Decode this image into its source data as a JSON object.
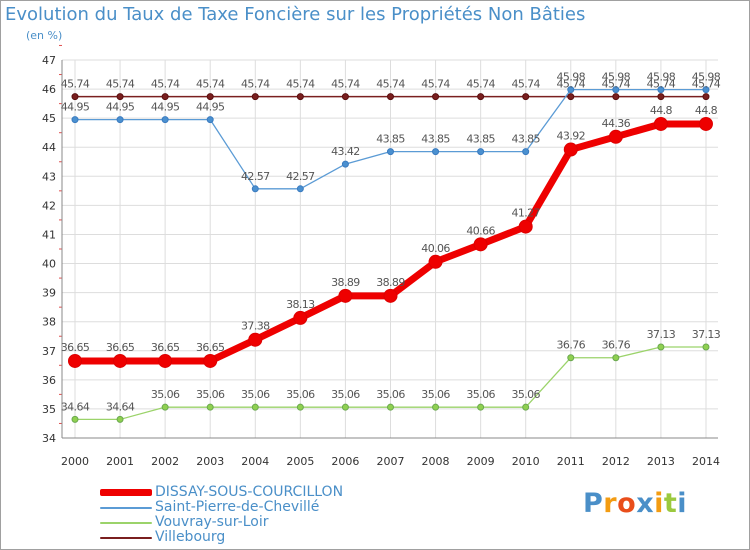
{
  "chart_data": {
    "type": "line",
    "title": "Evolution du Taux de Taxe Foncière sur les Propriétés Non Bâties",
    "subtitle": "(en %)",
    "xlabel": "",
    "ylabel": "",
    "categories": [
      "2000",
      "2001",
      "2002",
      "2003",
      "2004",
      "2005",
      "2006",
      "2007",
      "2008",
      "2009",
      "2010",
      "2011",
      "2012",
      "2013",
      "2014"
    ],
    "ylim": [
      34,
      47
    ],
    "yticks": [
      34,
      35,
      36,
      37,
      38,
      39,
      40,
      41,
      42,
      43,
      44,
      45,
      46,
      47
    ],
    "grid": true,
    "legend_position": "bottom-left",
    "series": [
      {
        "name": "DISSAY-SOUS-COURCILLON",
        "color": "#ee0000",
        "values": [
          36.65,
          36.65,
          36.65,
          36.65,
          37.38,
          38.13,
          38.89,
          38.89,
          40.06,
          40.66,
          41.27,
          43.92,
          44.36,
          44.8,
          44.8
        ],
        "labels": [
          "36.65",
          "36.65",
          "36.65",
          "36.65",
          "37.38",
          "38.13",
          "38.89",
          "38.89",
          "40.06",
          "40.66",
          "41.27",
          "43.92",
          "44.36",
          "44.8",
          "44.8"
        ]
      },
      {
        "name": "Saint-Pierre-de-Chevillé",
        "color": "#5b9bd5",
        "values": [
          44.95,
          44.95,
          44.95,
          44.95,
          42.57,
          42.57,
          43.42,
          43.85,
          43.85,
          43.85,
          43.85,
          45.98,
          45.98,
          45.98,
          45.98
        ],
        "labels": [
          "44.95",
          "44.95",
          "44.95",
          "44.95",
          "42.57",
          "42.57",
          "43.42",
          "43.85",
          "43.85",
          "43.85",
          "43.85",
          "45.98",
          "45.98",
          "45.98",
          "45.98"
        ]
      },
      {
        "name": "Vouvray-sur-Loir",
        "color": "#9bd36a",
        "values": [
          34.64,
          34.64,
          35.06,
          35.06,
          35.06,
          35.06,
          35.06,
          35.06,
          35.06,
          35.06,
          35.06,
          36.76,
          36.76,
          37.13,
          37.13
        ],
        "labels": [
          "34.64",
          "34.64",
          "35.06",
          "35.06",
          "35.06",
          "35.06",
          "35.06",
          "35.06",
          "35.06",
          "35.06",
          "35.06",
          "36.76",
          "36.76",
          "37.13",
          "37.13"
        ]
      },
      {
        "name": "Villebourg",
        "color": "#7a1f1f",
        "values": [
          45.74,
          45.74,
          45.74,
          45.74,
          45.74,
          45.74,
          45.74,
          45.74,
          45.74,
          45.74,
          45.74,
          45.74,
          45.74,
          45.74,
          45.74
        ],
        "labels": [
          "45.74",
          "45.74",
          "45.74",
          "45.74",
          "45.74",
          "45.74",
          "45.74",
          "45.74",
          "45.74",
          "45.74",
          "45.74",
          "45.74",
          "45.74",
          "45.74",
          "45.74"
        ]
      }
    ]
  },
  "logo": {
    "text": "Proxiti",
    "letters": [
      "P",
      "r",
      "o",
      "x",
      "i",
      "t",
      "i"
    ],
    "colors": [
      "#4a8fc8",
      "#f39c12",
      "#e94e1b",
      "#4a8fc8",
      "#f39c12",
      "#9bc93e",
      "#4a8fc8"
    ]
  }
}
